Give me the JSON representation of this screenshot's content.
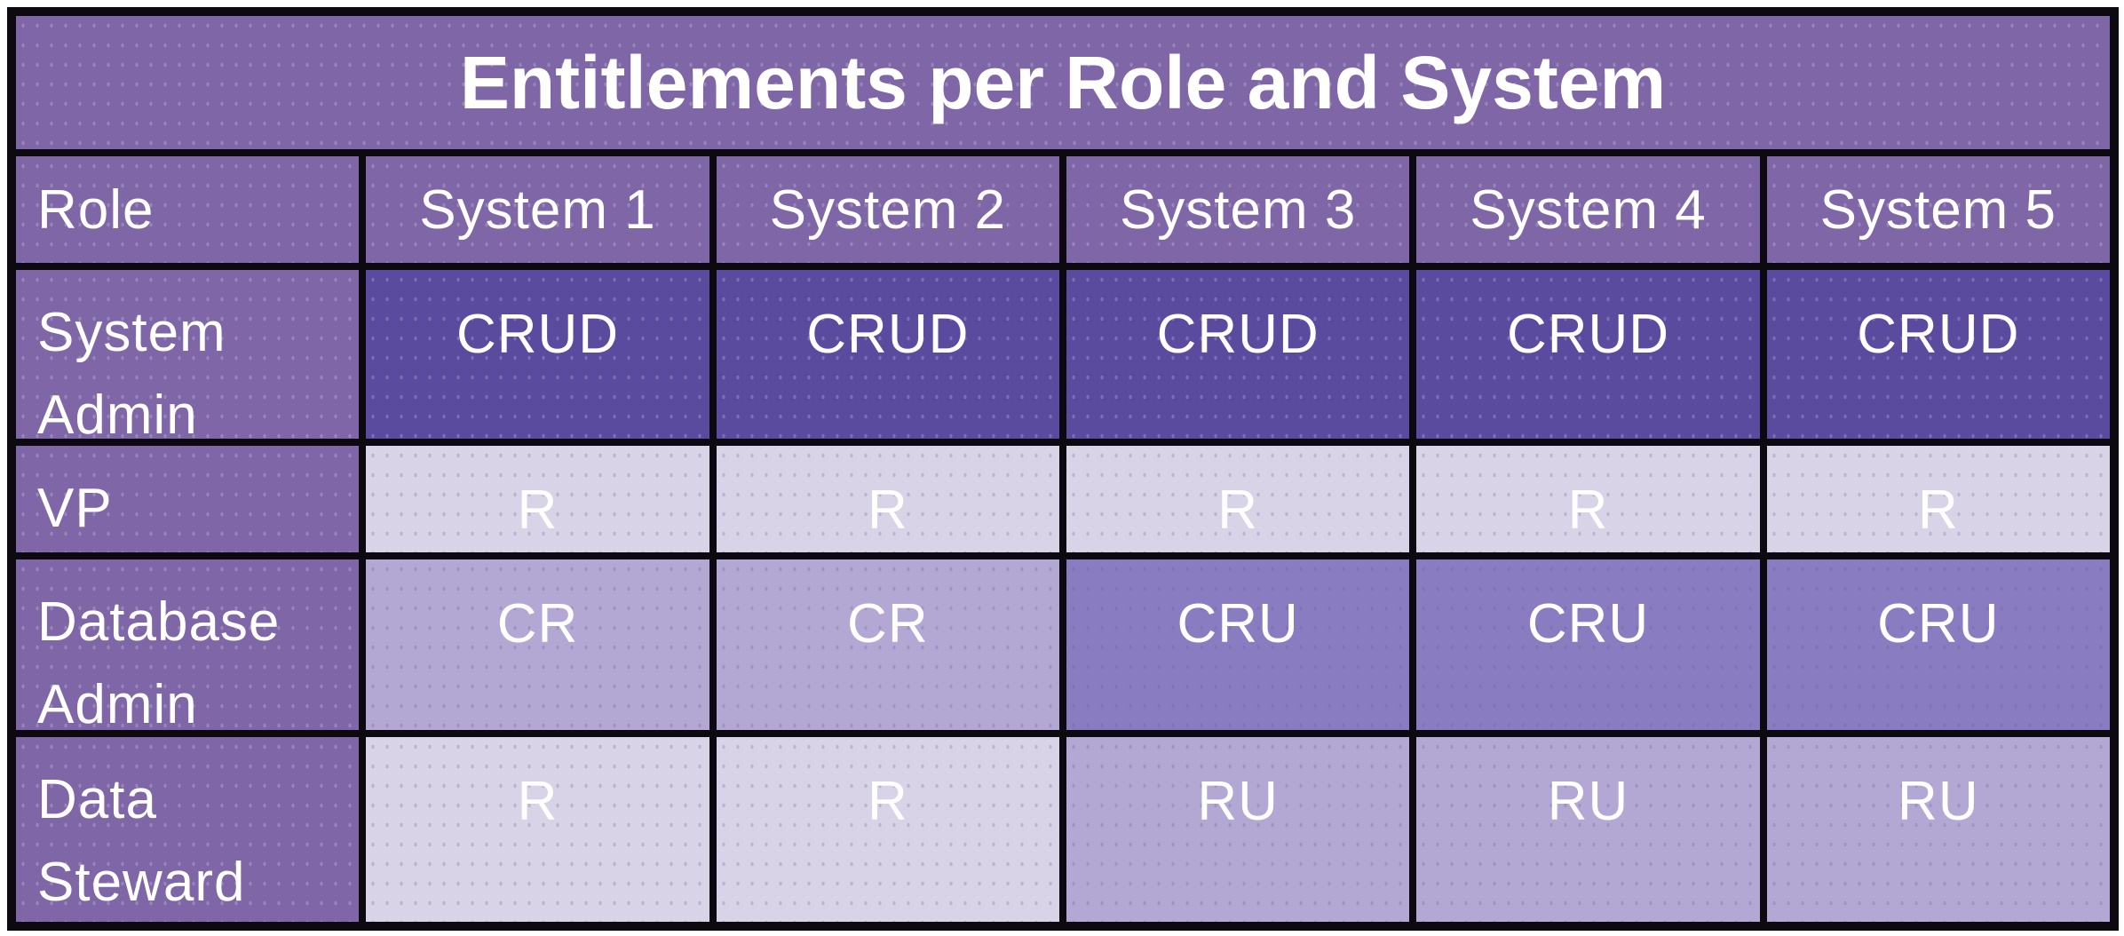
{
  "chart_data": {
    "type": "table",
    "title": "Entitlements per Role and System",
    "columns": [
      "Role",
      "System 1",
      "System 2",
      "System 3",
      "System 4",
      "System 5"
    ],
    "rows": [
      {
        "role": "System Admin",
        "values": [
          "CRUD",
          "CRUD",
          "CRUD",
          "CRUD",
          "CRUD"
        ]
      },
      {
        "role": "VP",
        "values": [
          "R",
          "R",
          "R",
          "R",
          "R"
        ]
      },
      {
        "role": "Database Admin",
        "values": [
          "CR",
          "CR",
          "CRU",
          "CRU",
          "CRU"
        ]
      },
      {
        "role": "Data Steward",
        "values": [
          "R",
          "R",
          "RU",
          "RU",
          "RU"
        ]
      }
    ]
  },
  "colors": {
    "page_background": "#ffffff",
    "grid_lines": "#0c0a10",
    "header_background": "#7e66a7",
    "text": "#ffffff",
    "permission_cell_colors": {
      "CRUD": "#5a4b9f",
      "CRU": "#8a7cc0",
      "CR": "#b3a8d3",
      "RU": "#b3a8d3",
      "R": "#d9d3e8"
    }
  }
}
